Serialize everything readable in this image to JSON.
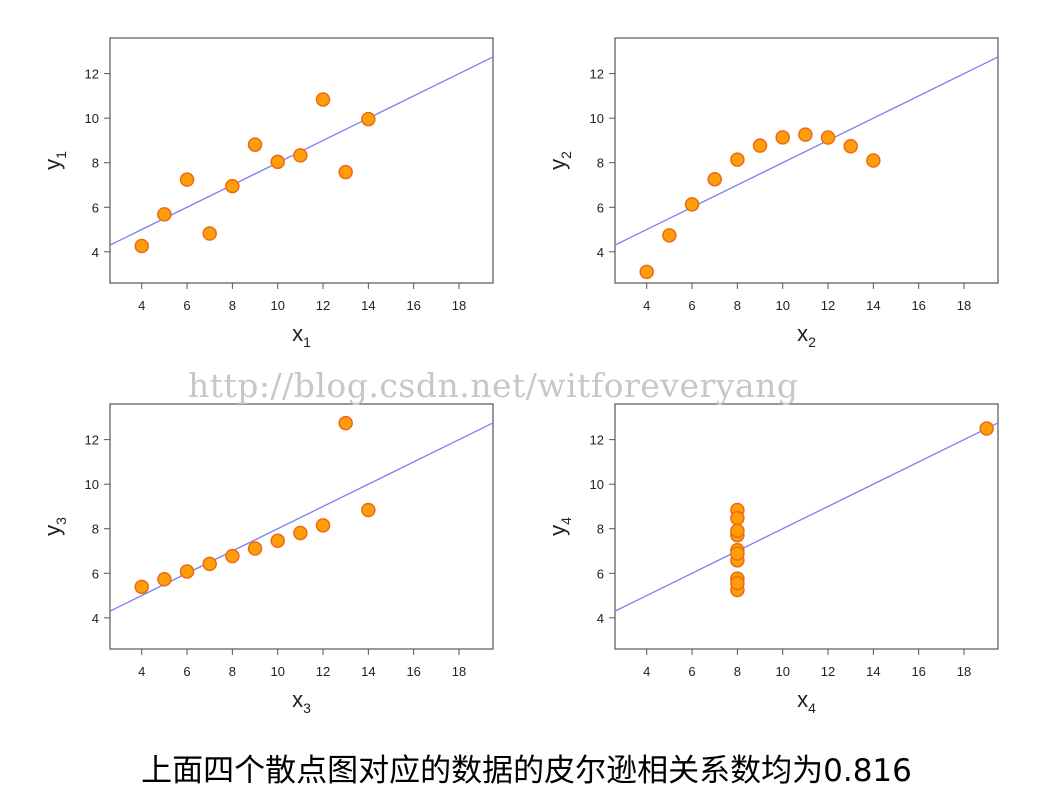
{
  "watermark": "http://blog.csdn.net/witforeveryang",
  "caption": "上面四个散点图对应的数据的皮尔逊相关系数均为0.816",
  "colors": {
    "point_fill": "#ff9d0a",
    "point_stroke": "#ee6a12",
    "line": "#7c7ff2",
    "frame": "#555555"
  },
  "chart_data": [
    {
      "type": "scatter",
      "title": "",
      "xlabel": "x",
      "xlabel_sub": "1",
      "ylabel": "y",
      "ylabel_sub": "1",
      "xlim": [
        2.6,
        19.5
      ],
      "ylim": [
        2.6,
        13.6
      ],
      "xticks": [
        4,
        6,
        8,
        10,
        12,
        14,
        16,
        18
      ],
      "yticks": [
        4,
        6,
        8,
        10,
        12
      ],
      "grid": false,
      "points": [
        [
          4,
          4.26
        ],
        [
          5,
          5.68
        ],
        [
          6,
          7.24
        ],
        [
          7,
          4.82
        ],
        [
          8,
          6.95
        ],
        [
          9,
          8.81
        ],
        [
          10,
          8.04
        ],
        [
          11,
          8.33
        ],
        [
          12,
          10.84
        ],
        [
          13,
          7.58
        ],
        [
          14,
          9.96
        ]
      ],
      "fit_line": {
        "intercept": 3.0,
        "slope": 0.5
      }
    },
    {
      "type": "scatter",
      "title": "",
      "xlabel": "x",
      "xlabel_sub": "2",
      "ylabel": "y",
      "ylabel_sub": "2",
      "xlim": [
        2.6,
        19.5
      ],
      "ylim": [
        2.6,
        13.6
      ],
      "xticks": [
        4,
        6,
        8,
        10,
        12,
        14,
        16,
        18
      ],
      "yticks": [
        4,
        6,
        8,
        10,
        12
      ],
      "grid": false,
      "points": [
        [
          4,
          3.1
        ],
        [
          5,
          4.74
        ],
        [
          6,
          6.13
        ],
        [
          7,
          7.26
        ],
        [
          8,
          8.14
        ],
        [
          9,
          8.77
        ],
        [
          10,
          9.14
        ],
        [
          11,
          9.26
        ],
        [
          12,
          9.13
        ],
        [
          13,
          8.74
        ],
        [
          14,
          8.1
        ]
      ],
      "fit_line": {
        "intercept": 3.0,
        "slope": 0.5
      }
    },
    {
      "type": "scatter",
      "title": "",
      "xlabel": "x",
      "xlabel_sub": "3",
      "ylabel": "y",
      "ylabel_sub": "3",
      "xlim": [
        2.6,
        19.5
      ],
      "ylim": [
        2.6,
        13.6
      ],
      "xticks": [
        4,
        6,
        8,
        10,
        12,
        14,
        16,
        18
      ],
      "yticks": [
        4,
        6,
        8,
        10,
        12
      ],
      "grid": false,
      "points": [
        [
          4,
          5.39
        ],
        [
          5,
          5.73
        ],
        [
          6,
          6.08
        ],
        [
          7,
          6.42
        ],
        [
          8,
          6.77
        ],
        [
          9,
          7.11
        ],
        [
          10,
          7.46
        ],
        [
          11,
          7.81
        ],
        [
          12,
          8.15
        ],
        [
          13,
          12.74
        ],
        [
          14,
          8.84
        ]
      ],
      "fit_line": {
        "intercept": 3.0,
        "slope": 0.5
      }
    },
    {
      "type": "scatter",
      "title": "",
      "xlabel": "x",
      "xlabel_sub": "4",
      "ylabel": "y",
      "ylabel_sub": "4",
      "xlim": [
        2.6,
        19.5
      ],
      "ylim": [
        2.6,
        13.6
      ],
      "xticks": [
        4,
        6,
        8,
        10,
        12,
        14,
        16,
        18
      ],
      "yticks": [
        4,
        6,
        8,
        10,
        12
      ],
      "grid": false,
      "points": [
        [
          8,
          6.58
        ],
        [
          8,
          5.76
        ],
        [
          8,
          7.71
        ],
        [
          8,
          8.84
        ],
        [
          8,
          8.47
        ],
        [
          8,
          7.04
        ],
        [
          8,
          5.25
        ],
        [
          19,
          12.5
        ],
        [
          8,
          5.56
        ],
        [
          8,
          7.91
        ],
        [
          8,
          6.89
        ]
      ],
      "fit_line": {
        "intercept": 3.0,
        "slope": 0.5
      }
    }
  ]
}
